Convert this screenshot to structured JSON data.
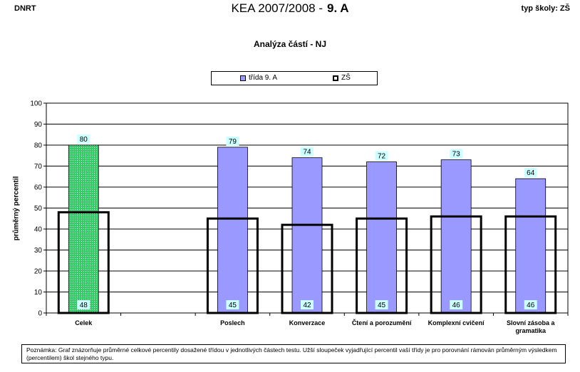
{
  "header": {
    "left": "DNRT",
    "title_main": "KEA 2007/2008 -",
    "title_class": "9. A",
    "right": "typ školy: ZŠ"
  },
  "chart_data": {
    "type": "bar",
    "title": "Analýza částí - NJ",
    "ylabel": "průměrný percentil",
    "xlabel": "",
    "ylim": [
      0,
      100
    ],
    "yticks": [
      0,
      10,
      20,
      30,
      40,
      50,
      60,
      70,
      80,
      90,
      100
    ],
    "grid": true,
    "legend_position": "top-center",
    "categories": [
      "Celek",
      "",
      "Poslech",
      "Konverzace",
      "Čtení a porozumění",
      "Komplexní cvičení",
      "Slovní zásoba a gramatika"
    ],
    "category_labels": [
      [
        "Celek"
      ],
      [
        ""
      ],
      [
        "Poslech"
      ],
      [
        "Konverzace"
      ],
      [
        "Čtení a porozumění"
      ],
      [
        "Komplexní cvičení"
      ],
      [
        "Slovní zásoba a",
        "gramatika"
      ]
    ],
    "series": [
      {
        "name": "třída  9. A",
        "values": [
          80,
          null,
          79,
          74,
          72,
          73,
          64
        ],
        "labels": [
          "80",
          "",
          "79",
          "74",
          "72",
          "73",
          "64"
        ]
      },
      {
        "name": "ZŠ",
        "values": [
          48,
          null,
          45,
          42,
          45,
          46,
          46
        ],
        "labels": [
          "48",
          "",
          "45",
          "42",
          "45",
          "46",
          "46"
        ]
      }
    ],
    "colors": {
      "class_bar": "#9999ff",
      "overall_bar": "#33cc66",
      "school_outline": "#000000",
      "label_bg": "#ccffff",
      "plot_bg": "#ffffff",
      "grid": "#000000"
    }
  },
  "note": "Poznámka: Graf znázorňuje průměrné celkové percentily dosažené třídou v jednotlivých částech testu. Užší sloupeček vyjadřující percentil vaší třídy je pro porovnání rámován průměrným výsledkem  (percentilem)  škol stejného typu."
}
